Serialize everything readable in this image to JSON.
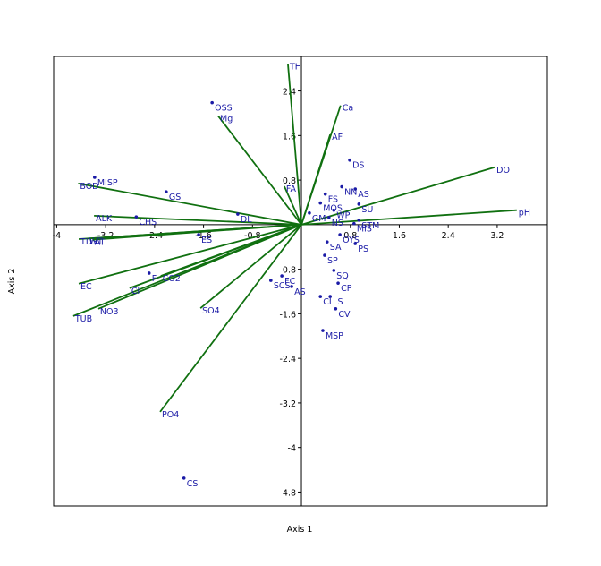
{
  "chart_data": {
    "type": "biplot",
    "xlabel": "Axis 1",
    "ylabel": "Axis 2",
    "xlim": [
      -4.05,
      4.02
    ],
    "ylim": [
      -5.05,
      3.02
    ],
    "xticks": [
      -4,
      -3.2,
      -2.4,
      -1.6,
      -0.8,
      0.8,
      1.6,
      2.4,
      3.2
    ],
    "yticks": [
      2.4,
      1.6,
      0.8,
      -0.8,
      -1.6,
      -2.4,
      -3.2,
      -4,
      -4.8
    ],
    "vectors": {
      "color": "#107010",
      "labels": [
        "TH",
        "Ca",
        "AF",
        "FA",
        "DO",
        "pH",
        "Mg",
        "BOD",
        "ALK",
        "TDS",
        "WT",
        "AT",
        "EC",
        "TUB",
        "NO3",
        "Cl",
        "CO2",
        "SO4",
        "PO4"
      ],
      "x": [
        -0.22,
        0.64,
        0.47,
        -0.28,
        3.16,
        3.52,
        -1.36,
        -3.65,
        -3.39,
        -3.64,
        -3.5,
        -3.41,
        -3.64,
        -3.73,
        -3.32,
        -2.81,
        -2.3,
        -1.65,
        -2.31
      ],
      "y": [
        2.88,
        2.14,
        1.62,
        0.69,
        1.03,
        0.26,
        1.95,
        0.74,
        0.16,
        -0.26,
        -0.25,
        -0.27,
        -1.06,
        -1.64,
        -1.51,
        -1.14,
        -0.92,
        -1.5,
        -3.36
      ]
    },
    "points": {
      "color": "#1a1aa6",
      "labels": [
        "OSS",
        "MISP",
        "GS",
        "CHS",
        "DL",
        "ES",
        "F",
        "DS",
        "FS",
        "NN",
        "AS",
        "MOS",
        "SU",
        "WP",
        "NS",
        "MIS",
        "STM",
        "OYS",
        "SA",
        "PS",
        "SP",
        "SQ",
        "CP",
        "CL",
        "LS",
        "CV",
        "MSP",
        "FC",
        "SCS",
        "AS",
        "CS",
        "GM"
      ],
      "x": [
        -1.46,
        -3.38,
        -2.21,
        -2.7,
        -1.04,
        -1.68,
        -2.49,
        0.79,
        0.39,
        0.66,
        0.88,
        0.31,
        0.94,
        0.53,
        0.45,
        0.86,
        0.94,
        0.63,
        0.42,
        0.88,
        0.38,
        0.53,
        0.6,
        0.31,
        0.47,
        0.56,
        0.35,
        -0.32,
        -0.5,
        -0.16,
        -1.92,
        0.13
      ],
      "y": [
        2.19,
        0.85,
        0.59,
        0.14,
        0.19,
        -0.18,
        -0.87,
        1.16,
        0.55,
        0.68,
        0.64,
        0.39,
        0.37,
        0.26,
        0.13,
        0.02,
        0.08,
        -0.18,
        -0.31,
        -0.34,
        -0.55,
        -0.82,
        -1.05,
        -1.29,
        -1.29,
        -1.51,
        -1.9,
        -0.92,
        -1.0,
        -1.11,
        -4.55,
        0.21
      ]
    }
  }
}
